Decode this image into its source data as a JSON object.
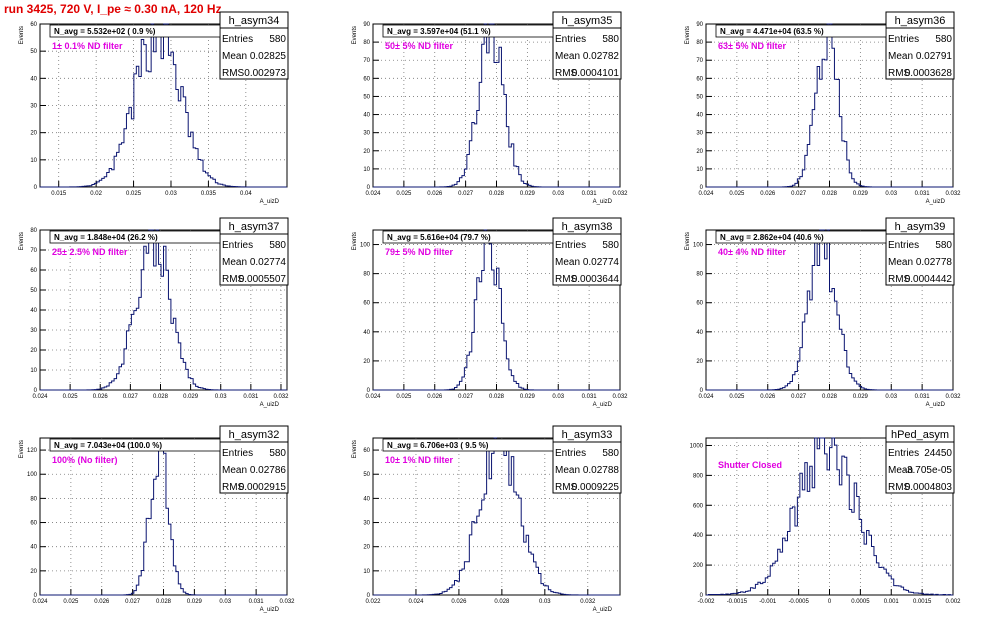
{
  "title": "run 3425,   720 V, I_pe ≈ 0.30 nA, 120 Hz",
  "stat_labels": {
    "entries": "Entries",
    "mean": "Mean",
    "rms": "RMS"
  },
  "colors": {
    "title": "#e00000",
    "annotation": "#e000e0",
    "histogram": "#0a1470",
    "axis": "#000000"
  },
  "chart_data": [
    {
      "type": "histogram",
      "name": "h_asym34",
      "nav": "N_avg = 5.532e+02 ( 0.9 %)",
      "label": "1± 0.1% ND filter",
      "entries": "580",
      "mean": "0.02825",
      "rms": "0.002973",
      "xlim": [
        0.0125,
        0.0455
      ],
      "ylim": [
        0,
        60
      ],
      "xticks": [
        0.015,
        0.02,
        0.025,
        0.03,
        0.035,
        0.04
      ],
      "xtick_labels": [
        "0.015",
        "0.02",
        "0.025",
        "0.03",
        "0.035",
        "0.04"
      ],
      "yticks": [
        0,
        10,
        20,
        30,
        40,
        50,
        60
      ],
      "xlabel": "A_uizD",
      "ylabel": "Events",
      "center": 0.02825,
      "sigma": 0.002973,
      "peak": 58,
      "bins": 100
    },
    {
      "type": "histogram",
      "name": "h_asym35",
      "nav": "N_avg = 3.597e+04 (51.1 %)",
      "label": "50± 5% ND filter",
      "entries": "580",
      "mean": "0.02782",
      "rms": "0.0004101",
      "xlim": [
        0.024,
        0.032
      ],
      "ylim": [
        0,
        90
      ],
      "xticks": [
        0.024,
        0.025,
        0.026,
        0.027,
        0.028,
        0.029,
        0.03,
        0.031,
        0.032
      ],
      "xtick_labels": [
        "0.024",
        "0.025",
        "0.026",
        "0.027",
        "0.028",
        "0.029",
        "0.03",
        "0.031",
        "0.032"
      ],
      "yticks": [
        0,
        10,
        20,
        30,
        40,
        50,
        60,
        70,
        80,
        90
      ],
      "xlabel": "A_uizD",
      "ylabel": "Events",
      "center": 0.02782,
      "sigma": 0.0004101,
      "peak": 85,
      "bins": 100
    },
    {
      "type": "histogram",
      "name": "h_asym36",
      "nav": "N_avg = 4.471e+04 (63.5 %)",
      "label": "63± 5% ND filter",
      "entries": "580",
      "mean": "0.02791",
      "rms": "0.0003628",
      "xlim": [
        0.024,
        0.032
      ],
      "ylim": [
        0,
        90
      ],
      "xticks": [
        0.024,
        0.025,
        0.026,
        0.027,
        0.028,
        0.029,
        0.03,
        0.031,
        0.032
      ],
      "xtick_labels": [
        "0.024",
        "0.025",
        "0.026",
        "0.027",
        "0.028",
        "0.029",
        "0.03",
        "0.031",
        "0.032"
      ],
      "yticks": [
        0,
        10,
        20,
        30,
        40,
        50,
        60,
        70,
        80,
        90
      ],
      "xlabel": "A_uizD",
      "ylabel": "Events",
      "center": 0.02791,
      "sigma": 0.0003628,
      "peak": 87,
      "bins": 100
    },
    {
      "type": "histogram",
      "name": "h_asym37",
      "nav": "N_avg = 1.848e+04 (26.2 %)",
      "label": "25± 2.5% ND filter",
      "entries": "580",
      "mean": "0.02774",
      "rms": "0.0005507",
      "xlim": [
        0.024,
        0.0322
      ],
      "ylim": [
        0,
        80
      ],
      "xticks": [
        0.024,
        0.025,
        0.026,
        0.027,
        0.028,
        0.029,
        0.03,
        0.031,
        0.032
      ],
      "xtick_labels": [
        "0.024",
        "0.025",
        "0.026",
        "0.027",
        "0.028",
        "0.029",
        "0.03",
        "0.031",
        "0.032"
      ],
      "yticks": [
        0,
        10,
        20,
        30,
        40,
        50,
        60,
        70,
        80
      ],
      "xlabel": "A_uizD",
      "ylabel": "Events",
      "center": 0.02774,
      "sigma": 0.0005507,
      "peak": 78,
      "bins": 100
    },
    {
      "type": "histogram",
      "name": "h_asym38",
      "nav": "N_avg = 5.616e+04 (79.7 %)",
      "label": "79± 5% ND filter",
      "entries": "580",
      "mean": "0.02774",
      "rms": "0.0003644",
      "xlim": [
        0.024,
        0.032
      ],
      "ylim": [
        0,
        110
      ],
      "xticks": [
        0.024,
        0.025,
        0.026,
        0.027,
        0.028,
        0.029,
        0.03,
        0.031,
        0.032
      ],
      "xtick_labels": [
        "0.024",
        "0.025",
        "0.026",
        "0.027",
        "0.028",
        "0.029",
        "0.03",
        "0.031",
        "0.032"
      ],
      "yticks": [
        0,
        20,
        40,
        60,
        80,
        100
      ],
      "xlabel": "A_uizD",
      "ylabel": "Events",
      "center": 0.02774,
      "sigma": 0.0003644,
      "peak": 106,
      "bins": 100
    },
    {
      "type": "histogram",
      "name": "h_asym39",
      "nav": "N_avg = 2.862e+04 (40.6 %)",
      "label": "40± 4% ND filter",
      "entries": "580",
      "mean": "0.02778",
      "rms": "0.0004442",
      "xlim": [
        0.024,
        0.032
      ],
      "ylim": [
        0,
        110
      ],
      "xticks": [
        0.024,
        0.025,
        0.026,
        0.027,
        0.028,
        0.029,
        0.03,
        0.031,
        0.032
      ],
      "xtick_labels": [
        "0.024",
        "0.025",
        "0.026",
        "0.027",
        "0.028",
        "0.029",
        "0.03",
        "0.031",
        "0.032"
      ],
      "yticks": [
        0,
        20,
        40,
        60,
        80,
        100
      ],
      "xlabel": "A_uizD",
      "ylabel": "Events",
      "center": 0.02778,
      "sigma": 0.0004442,
      "peak": 102,
      "bins": 100
    },
    {
      "type": "histogram",
      "name": "h_asym32",
      "nav": "N_avg = 7.043e+04 (100.0 %)",
      "label": "100% (No filter)",
      "entries": "580",
      "mean": "0.02786",
      "rms": "0.0002915",
      "xlim": [
        0.024,
        0.032
      ],
      "ylim": [
        0,
        130
      ],
      "xticks": [
        0.024,
        0.025,
        0.026,
        0.027,
        0.028,
        0.029,
        0.03,
        0.031,
        0.032
      ],
      "xtick_labels": [
        "0.024",
        "0.025",
        "0.026",
        "0.027",
        "0.028",
        "0.029",
        "0.03",
        "0.031",
        "0.032"
      ],
      "yticks": [
        0,
        20,
        40,
        60,
        80,
        100,
        120
      ],
      "xlabel": "A_uizD",
      "ylabel": "Events",
      "center": 0.02786,
      "sigma": 0.0002915,
      "peak": 125,
      "bins": 100
    },
    {
      "type": "histogram",
      "name": "h_asym33",
      "nav": "N_avg = 6.706e+03 ( 9.5 %)",
      "label": "10± 1% ND filter",
      "entries": "580",
      "mean": "0.02788",
      "rms": "0.0009225",
      "xlim": [
        0.022,
        0.0335
      ],
      "ylim": [
        0,
        65
      ],
      "xticks": [
        0.022,
        0.024,
        0.026,
        0.028,
        0.03,
        0.032
      ],
      "xtick_labels": [
        "0.022",
        "0.024",
        "0.026",
        "0.028",
        "0.03",
        "0.032"
      ],
      "yticks": [
        0,
        10,
        20,
        30,
        40,
        50,
        60
      ],
      "xlabel": "A_uizD",
      "ylabel": "Events",
      "center": 0.02788,
      "sigma": 0.0009225,
      "peak": 60,
      "bins": 100
    },
    {
      "type": "histogram",
      "name": "hPed_asym",
      "nav": "",
      "label": "Shutter Closed",
      "entries": "24450",
      "mean": "-3.705e-05",
      "rms": "0.0004803",
      "xlim": [
        -0.002,
        0.002
      ],
      "ylim": [
        0,
        1050
      ],
      "xticks": [
        -0.002,
        -0.0015,
        -0.001,
        -0.0005,
        0,
        0.0005,
        0.001,
        0.0015,
        0.002
      ],
      "xtick_labels": [
        "-0.002",
        "-0.0015",
        "-0.001",
        "-0.0005",
        "0",
        "0.0005",
        "0.001",
        "0.0015",
        "0.002"
      ],
      "yticks": [
        0,
        200,
        400,
        600,
        800,
        1000
      ],
      "xlabel": "",
      "ylabel": "",
      "center": -3.705e-05,
      "sigma": 0.0004803,
      "peak": 990,
      "bins": 100
    }
  ]
}
